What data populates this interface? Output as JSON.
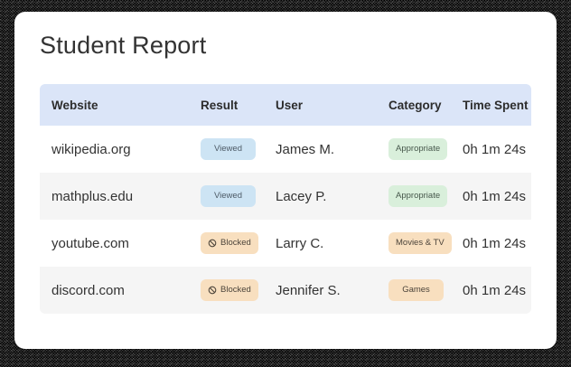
{
  "page": {
    "title": "Student Report"
  },
  "table": {
    "columns": [
      {
        "key": "website",
        "label": "Website"
      },
      {
        "key": "result",
        "label": "Result"
      },
      {
        "key": "user",
        "label": "User"
      },
      {
        "key": "category",
        "label": "Category"
      },
      {
        "key": "time",
        "label": "Time Spent"
      }
    ],
    "rows": [
      {
        "website": "wikipedia.org",
        "result": "Viewed",
        "result_type": "viewed",
        "user": "James M.",
        "category": "Appropriate",
        "category_type": "appropriate",
        "time": "0h 1m 24s"
      },
      {
        "website": "mathplus.edu",
        "result": "Viewed",
        "result_type": "viewed",
        "user": "Lacey P.",
        "category": "Appropriate",
        "category_type": "appropriate",
        "time": "0h 1m 24s"
      },
      {
        "website": "youtube.com",
        "result": "Blocked",
        "result_type": "blocked",
        "user": "Larry C.",
        "category": "Movies & TV",
        "category_type": "flagged",
        "time": "0h 1m 24s"
      },
      {
        "website": "discord.com",
        "result": "Blocked",
        "result_type": "blocked",
        "user": "Jennifer S.",
        "category": "Games",
        "category_type": "flagged",
        "time": "0h 1m 24s"
      }
    ]
  },
  "icons": {
    "blocked_icon": "no-entry-icon"
  },
  "colors": {
    "text": "#333333",
    "header_bg": "#dbe5f8",
    "row_alt": "#f5f5f5",
    "viewed_bg": "#cde4f4",
    "viewed_fg": "#4d5a66",
    "blocked_bg": "#f8dfbf",
    "blocked_fg": "#4c443a",
    "appropriate_bg": "#d9efdb",
    "appropriate_fg": "#47584c"
  }
}
